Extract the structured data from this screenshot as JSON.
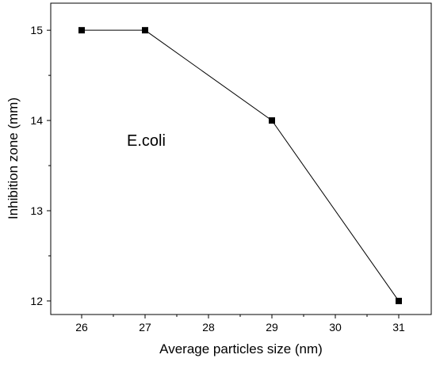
{
  "chart_data": {
    "type": "line",
    "title": "",
    "xlabel": "Average particles size (nm)",
    "ylabel": "Inhibition zone (mm)",
    "categories": [
      "26",
      "27",
      "28",
      "29",
      "30",
      "31"
    ],
    "series": [
      {
        "x": [
          "26",
          "27",
          "29",
          "31"
        ],
        "values": [
          15,
          15,
          14,
          12
        ]
      }
    ],
    "yticks": [
      "12",
      "13",
      "14",
      "15"
    ],
    "ylim": [
      11.85,
      15.3
    ],
    "annotation": "E.coli",
    "marker": "filled-square",
    "line_color": "#000000",
    "grid": false,
    "legend": "none"
  }
}
